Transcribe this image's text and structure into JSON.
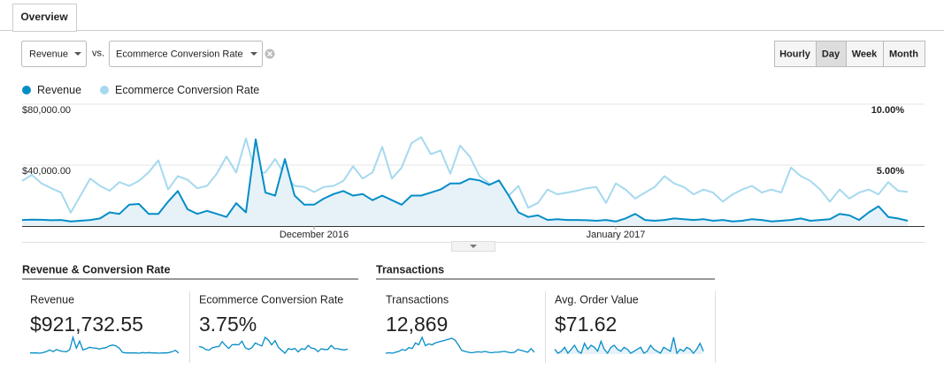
{
  "tabs": [
    "Overview"
  ],
  "controls": {
    "metric1": "Revenue",
    "vs": "vs.",
    "metric2": "Ecommerce Conversion Rate",
    "periods": [
      "Hourly",
      "Day",
      "Week",
      "Month"
    ],
    "active_period": 1
  },
  "chart_data": {
    "type": "line",
    "categories": [
      null,
      null,
      null,
      null,
      null,
      null,
      null,
      null,
      null,
      null,
      null,
      null,
      null,
      null,
      null,
      null,
      null,
      null,
      null,
      null,
      null,
      null,
      null,
      null,
      null,
      null,
      null,
      null,
      null,
      null,
      "December 2016",
      null,
      null,
      null,
      null,
      null,
      null,
      null,
      null,
      null,
      null,
      null,
      null,
      null,
      null,
      null,
      null,
      null,
      null,
      null,
      null,
      null,
      null,
      null,
      null,
      null,
      null,
      null,
      null,
      null,
      null,
      "January 2017",
      null,
      null,
      null,
      null,
      null,
      null,
      null,
      null,
      null,
      null,
      null,
      null,
      null,
      null,
      null,
      null,
      null,
      null,
      null,
      null,
      null,
      null,
      null,
      null,
      null,
      null,
      null,
      null,
      null,
      null
    ],
    "series": [
      {
        "name": "Revenue",
        "color": "#058dc7",
        "fill": "#e6f2f8",
        "values": [
          4000,
          4200,
          4100,
          3800,
          4000,
          3000,
          3500,
          4000,
          5000,
          9000,
          8000,
          14000,
          14500,
          8000,
          8000,
          16000,
          23000,
          11000,
          8000,
          10000,
          8000,
          6000,
          15000,
          9000,
          57000,
          22000,
          20000,
          44000,
          20000,
          14000,
          14000,
          18000,
          21000,
          23000,
          20000,
          21000,
          17000,
          20000,
          17000,
          14000,
          20000,
          20000,
          22000,
          24000,
          28000,
          28000,
          31000,
          30000,
          27000,
          30000,
          20000,
          9000,
          6000,
          7000,
          4000,
          4500,
          4000,
          4000,
          3800,
          3500,
          4000,
          3000,
          5000,
          8000,
          4000,
          3500,
          4000,
          5000,
          4500,
          4000,
          4500,
          3500,
          4000,
          3000,
          3500,
          4500,
          4000,
          3000,
          3500,
          4000,
          5000,
          3500,
          4000,
          4500,
          8000,
          7000,
          4000,
          9000,
          13000,
          6000,
          5000,
          3500
        ]
      },
      {
        "name": "Ecommerce Conversion Rate",
        "color": "#a6d9ef",
        "axis": "y2",
        "values": [
          3.7,
          4.2,
          3.5,
          3.1,
          2.75,
          1.1,
          2.5,
          3.9,
          3.3,
          2.9,
          3.6,
          3.3,
          3.7,
          4.4,
          5.4,
          3.0,
          4.1,
          3.8,
          3.1,
          3.3,
          4.3,
          5.7,
          4.4,
          7.2,
          4.3,
          4.4,
          5.5,
          4.2,
          3.3,
          3.2,
          2.8,
          3.2,
          3.3,
          3.7,
          4.9,
          3.9,
          4.4,
          6.5,
          3.9,
          4.8,
          6.8,
          7.3,
          5.9,
          6.2,
          4.3,
          6.6,
          5.7,
          4.1,
          3.5,
          3.1,
          2.5,
          3.3,
          1.5,
          1.9,
          3.0,
          2.6,
          2.75,
          2.9,
          3.1,
          3.2,
          1.9,
          3.5,
          3.0,
          2.25,
          2.75,
          3.2,
          4.1,
          3.5,
          3.2,
          2.6,
          3.0,
          2.75,
          2.0,
          2.6,
          3.0,
          3.3,
          2.75,
          3.0,
          2.75,
          4.8,
          4.1,
          3.7,
          3.0,
          2.0,
          3.0,
          2.25,
          2.75,
          3.0,
          2.6,
          3.6,
          2.9,
          2.8
        ]
      }
    ],
    "ylim": [
      0,
      80000
    ],
    "yticks": [
      {
        "value": 40000,
        "label": "$40,000.00"
      },
      {
        "value": 80000,
        "label": "$80,000.00"
      }
    ],
    "y2lim": [
      0,
      10
    ],
    "y2ticks": [
      {
        "value": 5,
        "label": "5.00%"
      },
      {
        "value": 10,
        "label": "10.00%"
      }
    ],
    "grid": true
  },
  "sections": [
    {
      "title": "Revenue & Conversion Rate",
      "cards": [
        {
          "label": "Revenue",
          "value": "$921,732.55",
          "color": "#058dc7",
          "sparkline": [
            4000,
            4000,
            4000,
            3000,
            5000,
            9000,
            14000,
            8000,
            16000,
            11000,
            9000,
            8000,
            15000,
            57000,
            20000,
            44000,
            14000,
            18000,
            23000,
            21000,
            20000,
            17000,
            20000,
            22000,
            28000,
            31000,
            28000,
            20000,
            6000,
            4000,
            4000,
            4000,
            4000,
            3000,
            5000,
            4000,
            5000,
            4000,
            4000,
            3000,
            4000,
            4000,
            5000,
            8000,
            13000,
            4000
          ]
        },
        {
          "label": "Ecommerce Conversion Rate",
          "value": "3.75%",
          "color": "#058dc7",
          "sparkline": [
            3.7,
            3.5,
            2.75,
            2.5,
            3.3,
            3.6,
            3.7,
            5.4,
            4.1,
            3.1,
            4.3,
            4.4,
            4.3,
            5.5,
            3.3,
            2.8,
            3.3,
            4.9,
            4.4,
            3.9,
            6.8,
            5.9,
            4.3,
            5.7,
            3.5,
            2.5,
            1.5,
            3.0,
            2.75,
            3.1,
            1.9,
            3.0,
            2.75,
            4.1,
            3.2,
            3.0,
            2.0,
            3.0,
            2.75,
            2.75,
            4.1,
            3.0,
            3.0,
            2.75,
            2.6,
            2.9
          ]
        }
      ]
    },
    {
      "title": "Transactions",
      "cards": [
        {
          "label": "Transactions",
          "value": "12,869",
          "color": "#058dc7",
          "sparkline": [
            90,
            95,
            90,
            100,
            110,
            130,
            120,
            150,
            140,
            200,
            180,
            260,
            170,
            190,
            180,
            200,
            210,
            220,
            230,
            240,
            250,
            230,
            180,
            120,
            110,
            100,
            95,
            100,
            105,
            100,
            110,
            100,
            95,
            100,
            100,
            105,
            110,
            100,
            95,
            100,
            130,
            120,
            110,
            100,
            140,
            100
          ]
        },
        {
          "label": "Avg. Order Value",
          "value": "$71.62",
          "color": "#058dc7",
          "fill": "#e6f2f8",
          "sparkline": [
            72,
            70,
            71,
            73,
            70,
            72,
            74,
            71,
            70,
            75,
            72,
            74,
            73,
            71,
            76,
            72,
            70,
            73,
            74,
            72,
            71,
            73,
            72,
            70,
            71,
            72,
            73,
            70,
            71,
            74,
            72,
            71,
            70,
            73,
            72,
            71,
            78,
            70,
            72,
            71,
            73,
            72,
            70,
            72,
            75,
            71
          ]
        }
      ]
    }
  ]
}
